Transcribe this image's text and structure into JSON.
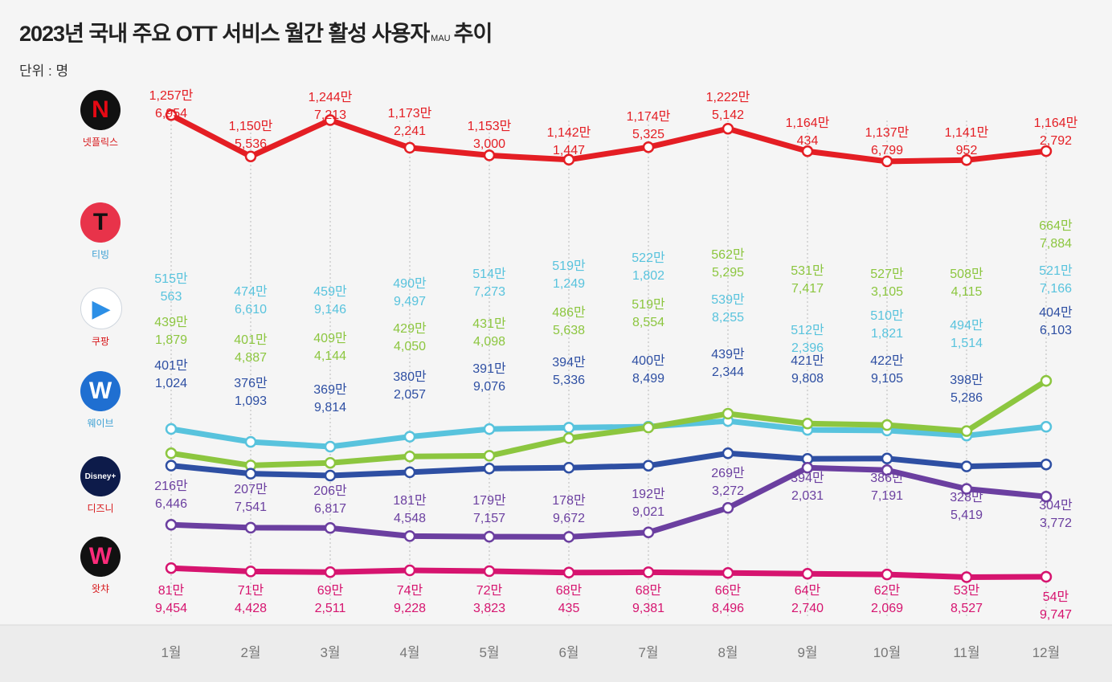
{
  "title": {
    "main": "2023년 국내 주요 OTT 서비스 월간 활성 사용자",
    "sub": "MAU",
    "end": "추이"
  },
  "unit": "단위 : 명",
  "logos": [
    {
      "key": "netflix",
      "name": "넷플릭스",
      "glyph": "N",
      "bg": "#111111",
      "fg": "#e50914",
      "label_color": "#d7191c"
    },
    {
      "key": "tving",
      "name": "티빙",
      "glyph": "T",
      "bg": "#e8334a",
      "fg": "#111111",
      "label_color": "#3a9fd3"
    },
    {
      "key": "coupang",
      "name": "쿠팡",
      "glyph": "▶",
      "bg": "#ffffff",
      "fg": "#2c8fe6",
      "label_color": "#d7191c"
    },
    {
      "key": "wavve",
      "name": "웨이브",
      "glyph": "W",
      "bg": "#1f6fd1",
      "fg": "#ffffff",
      "label_color": "#3a9fd3"
    },
    {
      "key": "disney",
      "name": "디즈니",
      "glyph": "Disney+",
      "bg": "#0d1b4a",
      "fg": "#ffffff",
      "label_color": "#d7191c"
    },
    {
      "key": "watcha",
      "name": "왓챠",
      "glyph": "W",
      "bg": "#111111",
      "fg": "#ff2b7a",
      "label_color": "#d7191c"
    }
  ],
  "chart_data": {
    "type": "line",
    "x": [
      "1월",
      "2월",
      "3월",
      "4월",
      "5월",
      "6월",
      "7월",
      "8월",
      "9월",
      "10월",
      "11월",
      "12월"
    ],
    "series": [
      {
        "name": "넷플릭스",
        "color": "#e41e24",
        "values": [
          12576954,
          11505536,
          12447213,
          11732241,
          11533000,
          11421447,
          11745325,
          12225142,
          11640434,
          11376799,
          11410952,
          11642792
        ],
        "man": [
          "1,257만",
          "1,150만",
          "1,244만",
          "1,173만",
          "1,153만",
          "1,142만",
          "1,174만",
          "1,222만",
          "1,164만",
          "1,137만",
          "1,141만",
          "1,164만"
        ],
        "rest": [
          "6,954",
          "5,536",
          "7,213",
          "2,241",
          "3,000",
          "1,447",
          "5,325",
          "5,142",
          "434",
          "6,799",
          "952",
          "2,792"
        ]
      },
      {
        "name": "티빙",
        "color": "#58c3dd",
        "values": [
          5150563,
          4746610,
          4599146,
          4909497,
          5147273,
          5191249,
          5221802,
          5398255,
          5122396,
          5101821,
          4941514,
          5217166
        ],
        "man": [
          "515만",
          "474만",
          "459만",
          "490만",
          "514만",
          "519만",
          "522만",
          "539만",
          "512만",
          "510만",
          "494만",
          "521만"
        ],
        "rest": [
          "563",
          "6,610",
          "9,146",
          "9,497",
          "7,273",
          "1,249",
          "1,802",
          "8,255",
          "2,396",
          "1,821",
          "1,514",
          "7,166"
        ]
      },
      {
        "name": "쿠팡",
        "color": "#8cc63f",
        "values": [
          4391879,
          4014887,
          4094144,
          4294050,
          4314098,
          4865638,
          5198554,
          5625295,
          5317417,
          5273105,
          5084115,
          6647884
        ],
        "man": [
          "439만",
          "401만",
          "409만",
          "429만",
          "431만",
          "486만",
          "519만",
          "562만",
          "531만",
          "527만",
          "508만",
          "664만"
        ],
        "rest": [
          "1,879",
          "4,887",
          "4,144",
          "4,050",
          "4,098",
          "5,638",
          "8,554",
          "5,295",
          "7,417",
          "3,105",
          "4,115",
          "7,884"
        ]
      },
      {
        "name": "웨이브",
        "color": "#2e4fa3",
        "values": [
          4011024,
          3761093,
          3699814,
          3802057,
          3919076,
          3945336,
          4008499,
          4392344,
          4219808,
          4229105,
          3985286,
          4046103
        ],
        "man": [
          "401만",
          "376만",
          "369만",
          "380만",
          "391만",
          "394만",
          "400만",
          "439만",
          "421만",
          "422만",
          "398만",
          "404만"
        ],
        "rest": [
          "1,024",
          "1,093",
          "9,814",
          "2,057",
          "9,076",
          "5,336",
          "8,499",
          "2,344",
          "9,808",
          "9,105",
          "5,286",
          "6,103"
        ]
      },
      {
        "name": "디즈니",
        "color": "#6b3fa0",
        "values": [
          2166446,
          2077541,
          2066817,
          1814548,
          1797157,
          1789672,
          1929021,
          2693272,
          3942031,
          3867191,
          3285419,
          3043772
        ],
        "man": [
          "216만",
          "207만",
          "206만",
          "181만",
          "179만",
          "178만",
          "192만",
          "269만",
          "394만",
          "386만",
          "328만",
          "304만"
        ],
        "rest": [
          "6,446",
          "7,541",
          "6,817",
          "4,548",
          "7,157",
          "9,672",
          "9,021",
          "3,272",
          "2,031",
          "7,191",
          "5,419",
          "3,772"
        ]
      },
      {
        "name": "왓챠",
        "color": "#d6146f",
        "values": [
          819454,
          714428,
          692511,
          749228,
          723823,
          680435,
          689381,
          668496,
          642740,
          622069,
          538527,
          549747
        ],
        "man": [
          "81만",
          "71만",
          "69만",
          "74만",
          "72만",
          "68만",
          "68만",
          "66만",
          "64만",
          "62만",
          "53만",
          "54만"
        ],
        "rest": [
          "9,454",
          "4,428",
          "2,511",
          "9,228",
          "3,823",
          "435",
          "9,381",
          "8,496",
          "2,740",
          "2,069",
          "8,527",
          "9,747"
        ]
      }
    ]
  }
}
